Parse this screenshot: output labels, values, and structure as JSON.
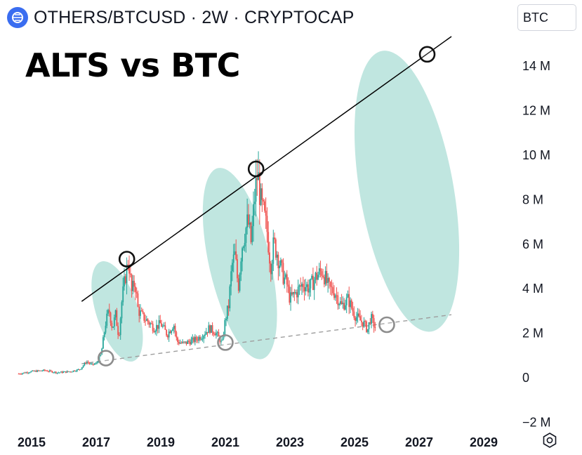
{
  "header": {
    "title": "OTHERS/BTCUSD · 2W · CRYPTOCAP",
    "currency_button": "BTC",
    "logo_icon": "cryptocap-logo-icon"
  },
  "chart_data": {
    "type": "candlestick",
    "title": "ALTS vs BTC",
    "xlabel": "",
    "ylabel": "",
    "x_ticks": [
      "2015",
      "2017",
      "2019",
      "2021",
      "2023",
      "2025",
      "2027",
      "2029"
    ],
    "y_ticks": [
      "−2 M",
      "0",
      "2 M",
      "4 M",
      "6 M",
      "8 M",
      "10 M",
      "12 M",
      "14 M"
    ],
    "y_tick_values": [
      -2,
      0,
      2,
      4,
      6,
      8,
      10,
      12,
      14
    ],
    "x_range": [
      2014.6,
      2029.7
    ],
    "y_range_millions": [
      -2,
      15.5
    ],
    "series_close_millions": [
      [
        2014.6,
        0.15
      ],
      [
        2015.0,
        0.25
      ],
      [
        2015.4,
        0.3
      ],
      [
        2015.8,
        0.2
      ],
      [
        2016.2,
        0.25
      ],
      [
        2016.5,
        0.35
      ],
      [
        2016.7,
        0.7
      ],
      [
        2016.85,
        0.55
      ],
      [
        2017.0,
        0.6
      ],
      [
        2017.15,
        1.0
      ],
      [
        2017.3,
        2.5
      ],
      [
        2017.4,
        3.0
      ],
      [
        2017.5,
        2.2
      ],
      [
        2017.6,
        2.8
      ],
      [
        2017.7,
        1.8
      ],
      [
        2017.8,
        3.5
      ],
      [
        2017.9,
        4.5
      ],
      [
        2018.0,
        5.3
      ],
      [
        2018.1,
        3.8
      ],
      [
        2018.2,
        4.3
      ],
      [
        2018.3,
        3.0
      ],
      [
        2018.45,
        2.7
      ],
      [
        2018.6,
        2.5
      ],
      [
        2018.8,
        2.2
      ],
      [
        2019.0,
        2.4
      ],
      [
        2019.2,
        1.9
      ],
      [
        2019.4,
        2.4
      ],
      [
        2019.5,
        1.6
      ],
      [
        2019.7,
        1.5
      ],
      [
        2019.9,
        1.6
      ],
      [
        2020.1,
        1.7
      ],
      [
        2020.3,
        1.9
      ],
      [
        2020.5,
        2.2
      ],
      [
        2020.7,
        2.0
      ],
      [
        2020.9,
        1.5
      ],
      [
        2021.0,
        2.6
      ],
      [
        2021.1,
        3.2
      ],
      [
        2021.2,
        5.0
      ],
      [
        2021.3,
        5.5
      ],
      [
        2021.4,
        4.0
      ],
      [
        2021.5,
        5.8
      ],
      [
        2021.6,
        6.5
      ],
      [
        2021.7,
        7.0
      ],
      [
        2021.8,
        6.0
      ],
      [
        2021.9,
        8.0
      ],
      [
        2022.0,
        9.2
      ],
      [
        2022.1,
        7.8
      ],
      [
        2022.2,
        7.2
      ],
      [
        2022.3,
        6.5
      ],
      [
        2022.4,
        5.0
      ],
      [
        2022.5,
        6.0
      ],
      [
        2022.6,
        5.6
      ],
      [
        2022.7,
        5.0
      ],
      [
        2022.8,
        4.5
      ],
      [
        2022.9,
        4.2
      ],
      [
        2023.0,
        3.5
      ],
      [
        2023.2,
        3.8
      ],
      [
        2023.4,
        4.2
      ],
      [
        2023.6,
        4.0
      ],
      [
        2023.8,
        4.5
      ],
      [
        2024.0,
        4.8
      ],
      [
        2024.2,
        4.0
      ],
      [
        2024.4,
        3.8
      ],
      [
        2024.6,
        3.2
      ],
      [
        2024.8,
        3.5
      ],
      [
        2025.0,
        2.8
      ],
      [
        2025.2,
        2.5
      ],
      [
        2025.3,
        2.4
      ],
      [
        2025.4,
        2.1
      ],
      [
        2025.5,
        2.7
      ],
      [
        2025.55,
        2.5
      ],
      [
        2025.65,
        2.2
      ]
    ],
    "annotations": {
      "resistance_line": [
        [
          2016.55,
          3.4
        ],
        [
          2028.0,
          15.3
        ]
      ],
      "support_line": [
        [
          2016.55,
          0.6
        ],
        [
          2028.0,
          2.8
        ]
      ],
      "peak_markers": [
        [
          2017.95,
          5.3
        ],
        [
          2021.95,
          9.35
        ],
        [
          2027.25,
          14.5
        ]
      ],
      "bottom_markers": [
        [
          2017.3,
          0.85
        ],
        [
          2021.0,
          1.55
        ],
        [
          2026.0,
          2.35
        ]
      ],
      "highlight_ellipses": [
        {
          "cx": 2017.65,
          "cy": 2.95,
          "rx": 0.65,
          "ry": 2.35,
          "rotate": -18
        },
        {
          "cx": 2021.45,
          "cy": 5.1,
          "rx": 0.95,
          "ry": 4.4,
          "rotate": -13
        },
        {
          "cx": 2026.62,
          "cy": 8.35,
          "rx": 1.45,
          "ry": 6.4,
          "rotate": -10
        }
      ]
    },
    "colors": {
      "up": "#26a69a",
      "down": "#ef5350",
      "resistance_line": "#000000",
      "support_line": "#9e9e9e",
      "ellipse_fill": "#9ed8cf",
      "axis_text": "#131722"
    }
  }
}
